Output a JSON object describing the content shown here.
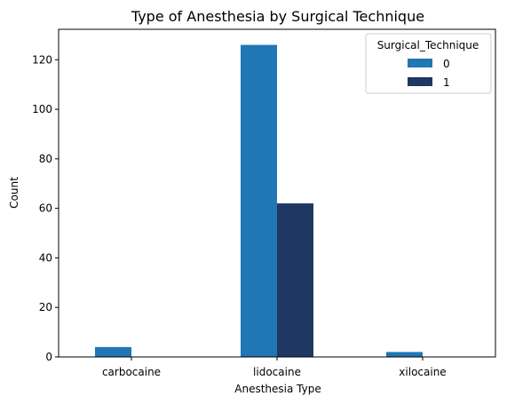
{
  "chart_data": {
    "type": "bar",
    "title": "Type of Anesthesia by Surgical Technique",
    "xlabel": "Anesthesia Type",
    "ylabel": "Count",
    "categories": [
      "carbocaine",
      "lidocaine",
      "xilocaine"
    ],
    "series": [
      {
        "name": "0",
        "values": [
          4,
          126,
          2
        ],
        "color": "#1f77b4"
      },
      {
        "name": "1",
        "values": [
          0,
          62,
          0
        ],
        "color": "#1f3763"
      }
    ],
    "ylim": [
      0,
      132.3
    ],
    "yticks": [
      0,
      20,
      40,
      60,
      80,
      100,
      120
    ],
    "legend": {
      "title": "Surgical_Technique",
      "placement": "top-right"
    },
    "grid": false
  }
}
